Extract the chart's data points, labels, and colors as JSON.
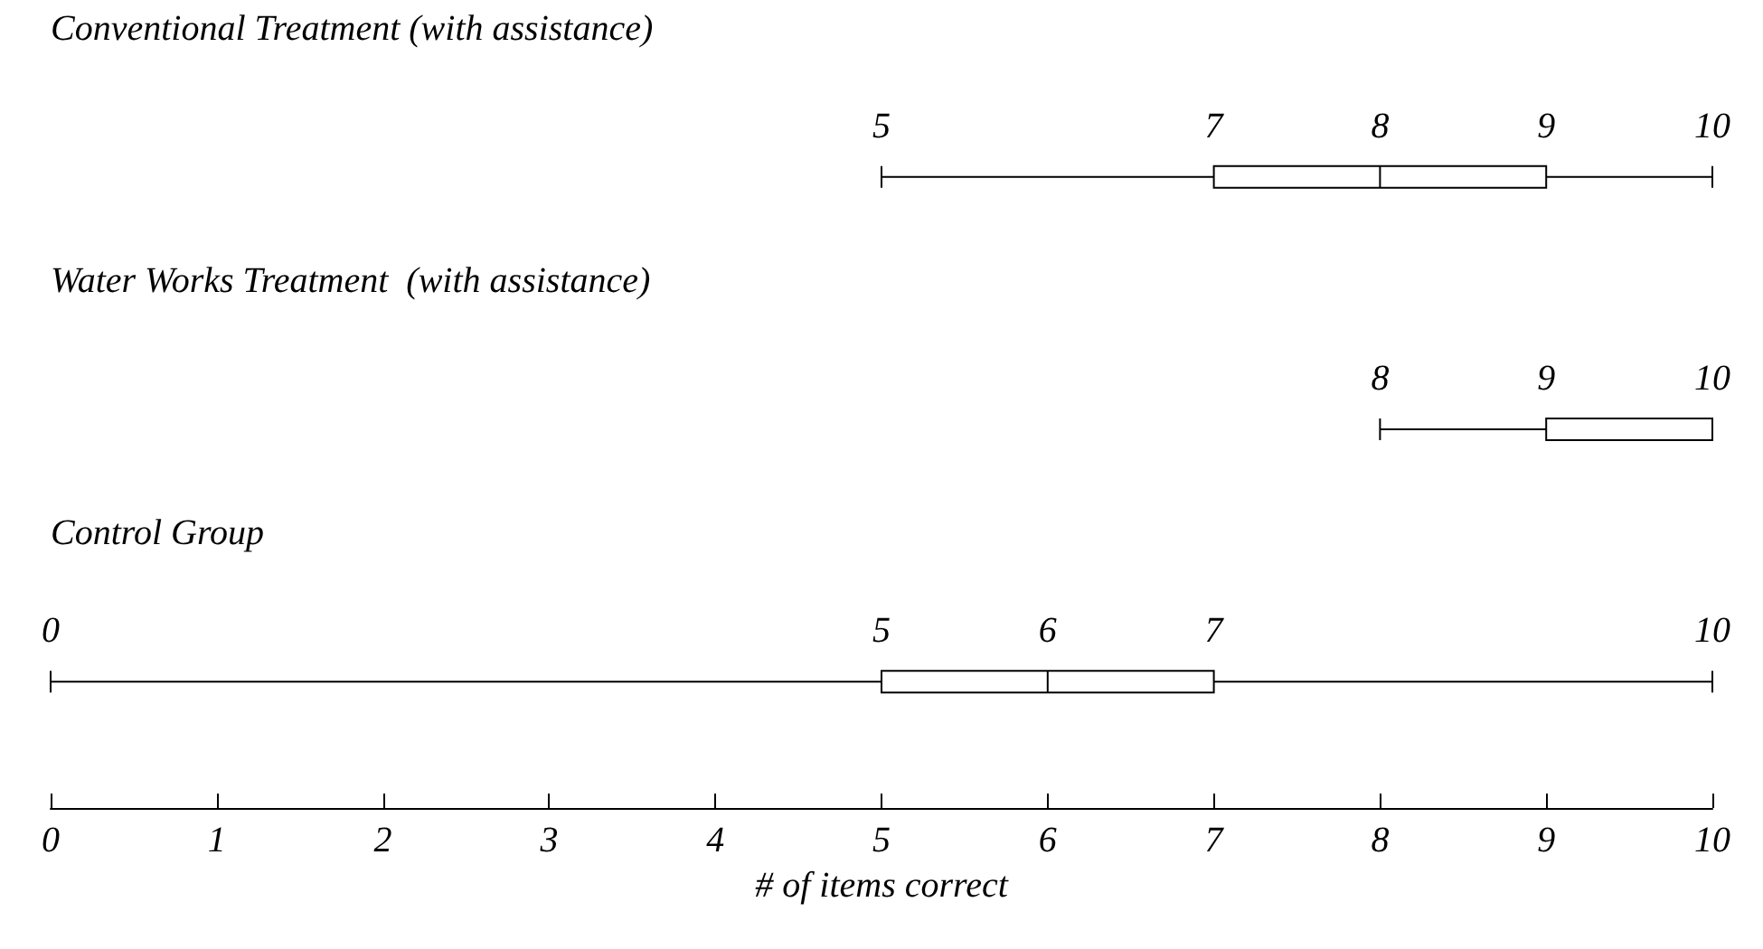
{
  "chart_data": {
    "type": "box",
    "orientation": "horizontal",
    "categories": [
      "Conventional Treatment (with assistance)",
      "Water Works Treatment  (with assistance)",
      "Control Group"
    ],
    "boxes": [
      {
        "low": 5,
        "q1": 7,
        "median": 8,
        "q3": 9,
        "high": 10
      },
      {
        "low": 8,
        "q1": 9,
        "median": 10,
        "q3": 10,
        "high": 10
      },
      {
        "low": 0,
        "q1": 5,
        "median": 6,
        "q3": 7,
        "high": 10
      }
    ],
    "color": "#000000",
    "xlim": [
      0,
      10
    ],
    "xticks": [
      0,
      1,
      2,
      3,
      4,
      5,
      6,
      7,
      8,
      9,
      10
    ],
    "xlabel": "# of items correct",
    "grid": false,
    "annotations": [
      "5",
      "7",
      "8",
      "9",
      "10",
      "8",
      "9",
      "10",
      "0",
      "5",
      "6",
      "7",
      "10"
    ]
  }
}
